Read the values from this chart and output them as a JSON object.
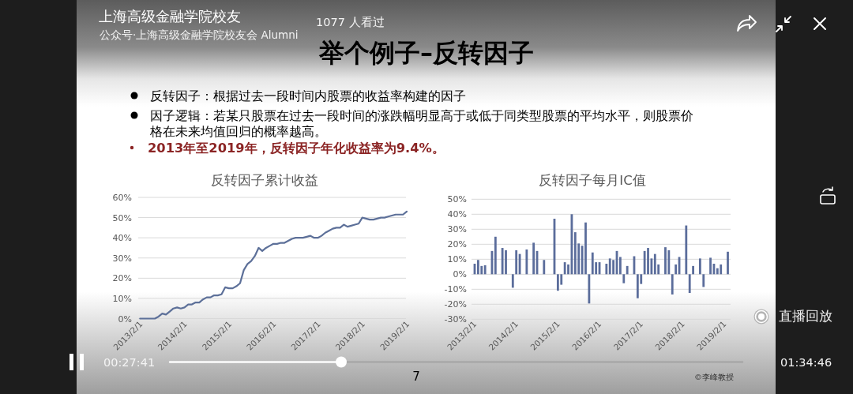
{
  "chart_data": [
    {
      "type": "other",
      "title": "举个例子–反转因子",
      "annotations": [
        "上海高级金融学院校友",
        "公众号·上海高级金融学院校友会 Alumni",
        "1077 人看过",
        "反转因子：根据过去一段时间内股票的收益率构建的因子",
        "因子逻辑：若某只股票在过去一段时间的涨跌幅明显高于或低于同类型股票的平均水平，则股票价格在未来均值回归的概率越高。",
        "2013年至2019年，反转因子年化收益率为9.4%。",
        "直播回放",
        "00:27:41",
        "01:34:46",
        "7",
        "©李峰教授"
      ]
    },
    {
      "type": "line",
      "title": "反转因子累计收益",
      "categories": [
        "2013/2/1",
        null,
        null,
        null,
        null,
        null,
        null,
        null,
        null,
        null,
        null,
        null,
        "2014/2/1",
        null,
        null,
        null,
        null,
        null,
        null,
        null,
        null,
        null,
        null,
        null,
        "2015/2/1",
        null,
        null,
        null,
        null,
        null,
        null,
        null,
        null,
        null,
        null,
        null,
        "2016/2/1",
        null,
        null,
        null,
        null,
        null,
        null,
        null,
        null,
        null,
        null,
        null,
        "2017/2/1",
        null,
        null,
        null,
        null,
        null,
        null,
        null,
        null,
        null,
        null,
        null,
        "2018/2/1",
        null,
        null,
        null,
        null,
        null,
        null,
        null,
        null,
        null,
        null,
        null,
        "2019/2/1"
      ],
      "values": [
        0,
        0,
        0,
        0,
        0,
        1,
        2.5,
        2,
        3.5,
        5,
        5.5,
        5,
        5.5,
        7,
        7,
        8,
        8,
        9.5,
        10.5,
        10.5,
        11.5,
        11.5,
        12,
        15.5,
        15,
        15,
        16,
        17.5,
        24,
        27,
        28.5,
        31,
        35,
        33.5,
        35,
        36,
        37,
        37,
        37.5,
        37.5,
        38.5,
        39.5,
        40,
        40,
        40,
        40.5,
        41,
        40,
        40,
        41,
        42.5,
        43.5,
        44.5,
        45,
        45,
        46.5,
        45.5,
        46,
        46.5,
        47,
        50,
        49.5,
        49,
        49,
        49.5,
        50,
        50,
        50.5,
        51,
        51.5,
        51.5,
        51.5,
        53
      ],
      "color": "#5d7099",
      "ylim": [
        0,
        60
      ],
      "yticks": [
        {
          "value": 0,
          "label": "0%"
        },
        {
          "value": 10,
          "label": "10%"
        },
        {
          "value": 20,
          "label": "20%"
        },
        {
          "value": 30,
          "label": "30%"
        },
        {
          "value": 40,
          "label": "40%"
        },
        {
          "value": 50,
          "label": "50%"
        },
        {
          "value": 60,
          "label": "60%"
        }
      ],
      "grid": "y"
    },
    {
      "type": "bar",
      "title": "反转因子每月IC值",
      "categories": [
        "2013/2/1",
        null,
        null,
        null,
        null,
        null,
        null,
        null,
        null,
        null,
        null,
        null,
        "2014/2/1",
        null,
        null,
        null,
        null,
        null,
        null,
        null,
        null,
        null,
        null,
        null,
        "2015/2/1",
        null,
        null,
        null,
        null,
        null,
        null,
        null,
        null,
        null,
        null,
        null,
        "2016/2/1",
        null,
        null,
        null,
        null,
        null,
        null,
        null,
        null,
        null,
        null,
        null,
        "2017/2/1",
        null,
        null,
        null,
        null,
        null,
        null,
        null,
        null,
        null,
        null,
        null,
        "2018/2/1",
        null,
        null,
        null,
        null,
        null,
        null,
        null,
        null,
        null,
        null,
        null,
        "2019/2/1",
        null
      ],
      "values": [
        7,
        9.5,
        5.5,
        6,
        null,
        15.5,
        25,
        null,
        17.5,
        16,
        null,
        -9,
        16,
        13.5,
        null,
        16.5,
        null,
        21,
        15.5,
        null,
        9.5,
        null,
        null,
        37,
        -11,
        -7,
        8,
        6.5,
        40,
        28,
        20.5,
        19,
        34.5,
        -19.5,
        14.5,
        8,
        8,
        null,
        7,
        10.5,
        9.5,
        15.5,
        11.5,
        -6,
        5.5,
        null,
        12,
        -16,
        -6.5,
        15.5,
        17.5,
        10.5,
        13.5,
        6.5,
        null,
        18,
        16,
        -13.5,
        6.5,
        11.5,
        null,
        32.5,
        -12.5,
        5.5,
        null,
        10.5,
        -8.5,
        null,
        11,
        7,
        4,
        6.5,
        null,
        15
      ],
      "color": "#5b6d9b",
      "ylim": [
        -30,
        50
      ],
      "yticks": [
        {
          "value": -30,
          "label": "-30%"
        },
        {
          "value": -20,
          "label": "-20%"
        },
        {
          "value": -10,
          "label": "-10%"
        },
        {
          "value": 0,
          "label": "0%"
        },
        {
          "value": 10,
          "label": "10%"
        },
        {
          "value": 20,
          "label": "20%"
        },
        {
          "value": 30,
          "label": "30%"
        },
        {
          "value": 40,
          "label": "40%"
        },
        {
          "value": 50,
          "label": "50%"
        }
      ],
      "grid": "y"
    }
  ]
}
